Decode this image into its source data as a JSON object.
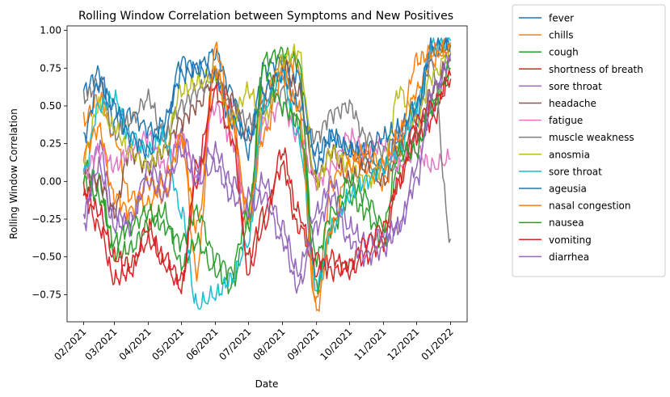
{
  "chart_data": {
    "type": "line",
    "title": "Rolling Window Correlation between Symptoms and New Positives",
    "xlabel": "Date",
    "ylabel": "Rolling Window Correlation",
    "ylim": [
      -0.93,
      1.03
    ],
    "xlim": [
      "2021-01-17",
      "2022-01-16"
    ],
    "grid": false,
    "legend_position": "outside-right",
    "x_ticks": [
      {
        "date": "2021-02-01",
        "label": "02/2021"
      },
      {
        "date": "2021-03-01",
        "label": "03/2021"
      },
      {
        "date": "2021-04-01",
        "label": "04/2021"
      },
      {
        "date": "2021-05-01",
        "label": "05/2021"
      },
      {
        "date": "2021-06-01",
        "label": "06/2021"
      },
      {
        "date": "2021-07-01",
        "label": "07/2021"
      },
      {
        "date": "2021-08-01",
        "label": "08/2021"
      },
      {
        "date": "2021-09-01",
        "label": "09/2021"
      },
      {
        "date": "2021-10-01",
        "label": "10/2021"
      },
      {
        "date": "2021-11-01",
        "label": "11/2021"
      },
      {
        "date": "2021-12-01",
        "label": "12/2021"
      },
      {
        "date": "2022-01-01",
        "label": "01/2022"
      }
    ],
    "y_ticks": [
      {
        "value": 1.0,
        "label": "1.00"
      },
      {
        "value": 0.75,
        "label": "0.75"
      },
      {
        "value": 0.5,
        "label": "0.50"
      },
      {
        "value": 0.25,
        "label": "0.25"
      },
      {
        "value": 0.0,
        "label": "0.00"
      },
      {
        "value": -0.25,
        "label": "−0.25"
      },
      {
        "value": -0.5,
        "label": "−0.50"
      },
      {
        "value": -0.75,
        "label": "−0.75"
      }
    ],
    "x": [
      "2021-02-01",
      "2021-02-15",
      "2021-03-01",
      "2021-03-15",
      "2021-04-01",
      "2021-04-15",
      "2021-05-01",
      "2021-05-15",
      "2021-06-01",
      "2021-06-15",
      "2021-07-01",
      "2021-07-15",
      "2021-08-01",
      "2021-08-15",
      "2021-09-01",
      "2021-09-15",
      "2021-10-01",
      "2021-10-15",
      "2021-11-01",
      "2021-11-15",
      "2021-12-01",
      "2021-12-15",
      "2022-01-01"
    ],
    "series": [
      {
        "name": "fever",
        "color": "#1f77b4",
        "values": [
          0.6,
          0.72,
          0.4,
          0.45,
          0.35,
          0.3,
          0.8,
          0.75,
          0.85,
          0.6,
          0.2,
          0.75,
          0.8,
          0.7,
          0.1,
          0.3,
          0.2,
          0.15,
          0.1,
          0.3,
          0.4,
          0.85,
          0.9
        ]
      },
      {
        "name": "chills",
        "color": "#ff7f0e",
        "values": [
          0.4,
          0.55,
          0.3,
          -0.1,
          -0.15,
          0.0,
          0.3,
          -0.6,
          0.88,
          0.5,
          -0.3,
          0.6,
          0.75,
          0.8,
          -0.8,
          0.0,
          0.2,
          0.1,
          0.0,
          0.2,
          0.6,
          0.8,
          0.92
        ]
      },
      {
        "name": "cough",
        "color": "#2ca02c",
        "values": [
          0.1,
          0.0,
          -0.5,
          -0.45,
          -0.3,
          -0.2,
          -0.55,
          -0.4,
          -0.6,
          -0.7,
          -0.3,
          0.8,
          0.85,
          0.8,
          -0.7,
          -0.3,
          -0.1,
          -0.2,
          -0.4,
          0.1,
          0.3,
          0.5,
          0.7
        ]
      },
      {
        "name": "shortness of breath",
        "color": "#d62728",
        "values": [
          -0.1,
          -0.3,
          -0.65,
          -0.6,
          -0.3,
          -0.55,
          -0.7,
          0.1,
          0.65,
          0.5,
          -0.6,
          -0.3,
          0.2,
          -0.2,
          -0.6,
          -0.5,
          -0.6,
          -0.5,
          -0.4,
          0.0,
          0.3,
          0.4,
          0.7
        ]
      },
      {
        "name": "sore throat",
        "color": "#9467bd",
        "values": [
          -0.3,
          0.25,
          -0.2,
          -0.3,
          0.1,
          0.0,
          0.3,
          0.1,
          0.2,
          0.0,
          -0.1,
          0.0,
          -0.3,
          -0.6,
          -0.2,
          0.0,
          -0.3,
          -0.4,
          -0.35,
          -0.3,
          0.1,
          0.5,
          0.85
        ]
      },
      {
        "name": "headache",
        "color": "#8c564b",
        "values": [
          0.05,
          0.0,
          -0.2,
          0.2,
          0.1,
          0.2,
          0.4,
          0.5,
          0.7,
          0.55,
          0.3,
          0.5,
          0.8,
          0.6,
          0.0,
          0.2,
          0.0,
          0.1,
          0.0,
          0.2,
          0.3,
          0.6,
          0.8
        ]
      },
      {
        "name": "fatigue",
        "color": "#e377c2",
        "values": [
          0.05,
          0.2,
          0.1,
          0.2,
          0.3,
          0.1,
          0.3,
          0.0,
          0.5,
          0.3,
          -0.2,
          0.4,
          0.5,
          0.3,
          0.0,
          0.1,
          0.3,
          0.2,
          0.25,
          0.1,
          0.2,
          0.1,
          0.15
        ]
      },
      {
        "name": "muscle weakness",
        "color": "#7f7f7f",
        "values": [
          0.55,
          0.65,
          0.3,
          0.4,
          0.55,
          0.3,
          0.5,
          0.6,
          0.7,
          0.5,
          0.4,
          0.5,
          0.6,
          0.4,
          0.3,
          0.45,
          0.5,
          0.3,
          0.2,
          0.3,
          0.5,
          0.8,
          -0.38
        ]
      },
      {
        "name": "anosmia",
        "color": "#bcbd22",
        "values": [
          0.15,
          0.5,
          0.35,
          0.2,
          0.1,
          0.2,
          0.6,
          0.65,
          0.7,
          0.4,
          0.6,
          0.4,
          0.8,
          0.86,
          0.0,
          0.2,
          0.1,
          0.0,
          0.1,
          0.6,
          0.4,
          0.7,
          0.85
        ]
      },
      {
        "name": "sore throat",
        "color": "#17becf",
        "values": [
          0.05,
          0.5,
          0.55,
          0.3,
          0.2,
          0.3,
          -0.2,
          -0.82,
          -0.75,
          -0.65,
          -0.4,
          0.5,
          0.7,
          0.3,
          -0.7,
          -0.3,
          -0.1,
          0.0,
          0.1,
          0.2,
          0.5,
          0.9,
          0.93
        ]
      },
      {
        "name": "ageusia",
        "color": "#1f77b4",
        "values": [
          0.3,
          0.65,
          0.5,
          0.3,
          0.2,
          0.4,
          0.7,
          0.75,
          0.7,
          0.4,
          0.3,
          0.6,
          0.7,
          0.5,
          0.2,
          0.3,
          0.2,
          0.2,
          0.3,
          0.35,
          0.5,
          0.9,
          0.9
        ]
      },
      {
        "name": "nasal congestion",
        "color": "#ff7f0e",
        "values": [
          0.2,
          0.35,
          -0.1,
          -0.2,
          0.0,
          -0.1,
          0.3,
          -0.3,
          0.75,
          0.4,
          -0.2,
          0.3,
          0.7,
          0.5,
          -0.85,
          -0.3,
          0.1,
          0.2,
          0.1,
          0.3,
          0.8,
          0.85,
          0.88
        ]
      },
      {
        "name": "nausea",
        "color": "#2ca02c",
        "values": [
          0.0,
          -0.1,
          -0.4,
          -0.3,
          -0.2,
          -0.3,
          -0.4,
          -0.2,
          -0.5,
          -0.6,
          -0.2,
          0.75,
          0.5,
          0.4,
          -0.5,
          -0.2,
          0.0,
          -0.1,
          -0.3,
          0.2,
          0.2,
          0.5,
          0.75
        ]
      },
      {
        "name": "vomiting",
        "color": "#d62728",
        "values": [
          -0.05,
          -0.2,
          -0.5,
          -0.55,
          -0.4,
          -0.5,
          -0.65,
          0.0,
          0.6,
          0.3,
          -0.5,
          -0.2,
          0.1,
          -0.3,
          -0.5,
          -0.6,
          -0.55,
          -0.4,
          -0.3,
          0.0,
          0.4,
          0.5,
          0.68
        ]
      },
      {
        "name": "diarrhea",
        "color": "#9467bd",
        "values": [
          -0.2,
          0.1,
          -0.3,
          -0.25,
          0.0,
          -0.1,
          0.2,
          0.0,
          0.1,
          -0.1,
          -0.2,
          -0.1,
          -0.4,
          -0.7,
          -0.3,
          -0.1,
          -0.4,
          -0.5,
          -0.45,
          -0.3,
          0.0,
          0.6,
          0.8
        ]
      }
    ]
  }
}
